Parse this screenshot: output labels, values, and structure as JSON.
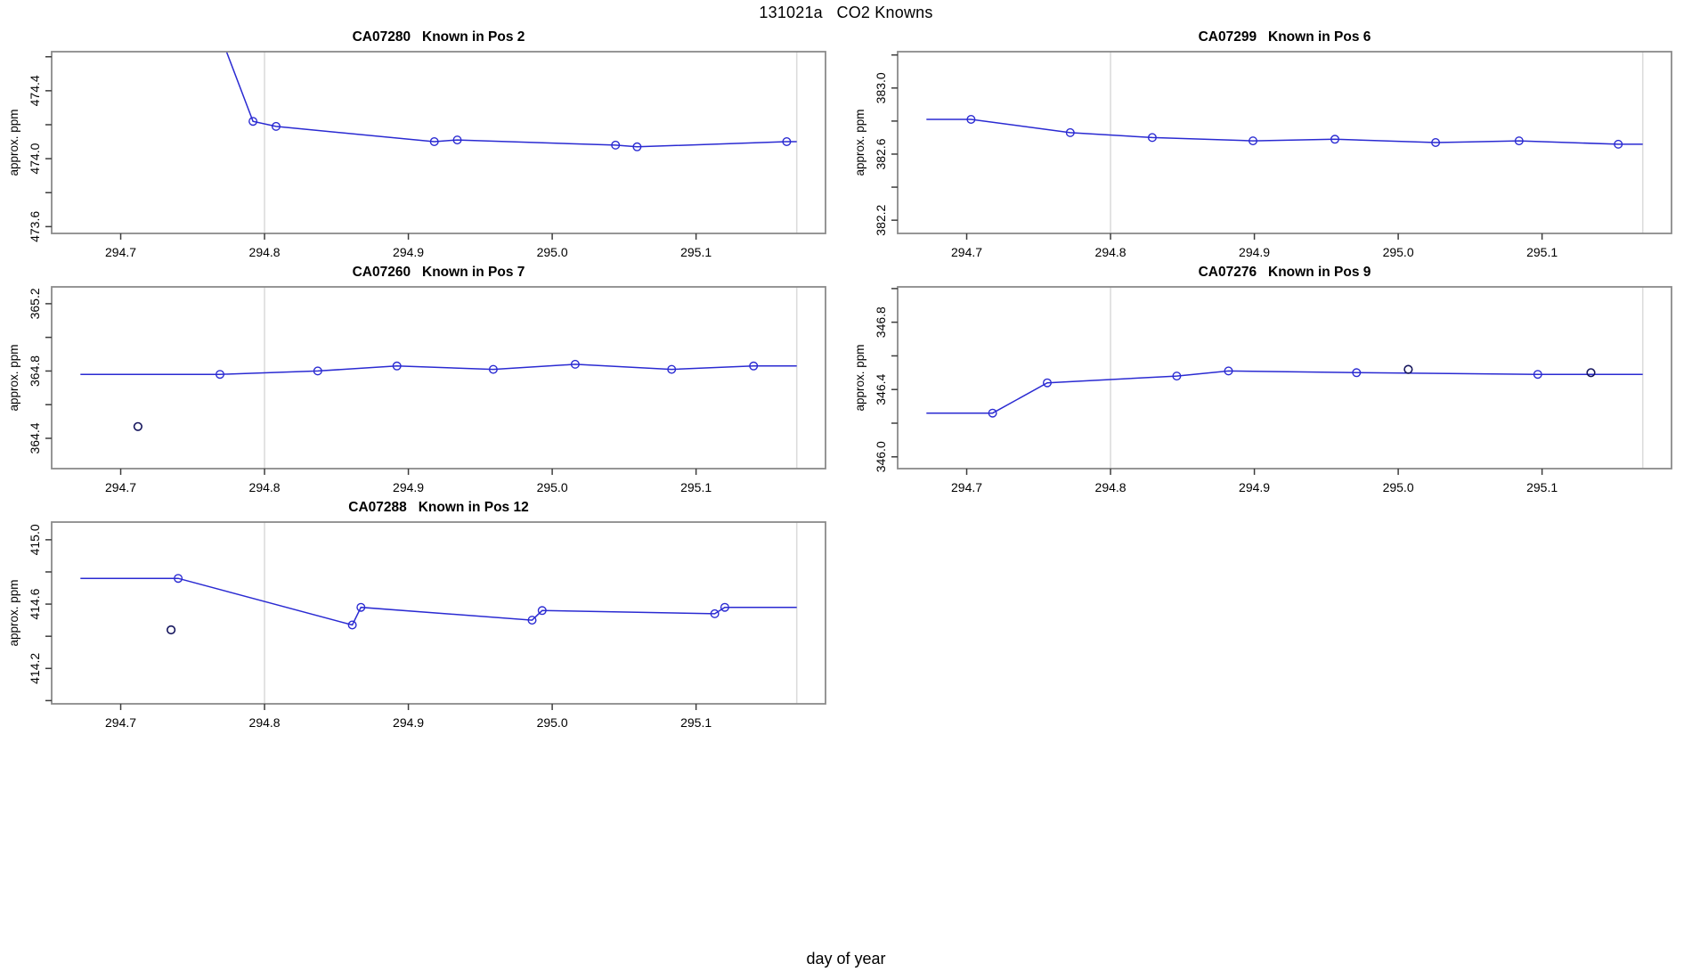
{
  "page": {
    "title": "131021a   CO2 Knowns",
    "xlabel": "day of year"
  },
  "colors": {
    "series_blue": "#2a2ad2",
    "dark_point": "#14145c",
    "vline_gray": "#dcdcdc",
    "box_gray": "#8a8a8a",
    "tick_dark": "#3d3d3d",
    "text_black": "#000000"
  },
  "chart_data": [
    {
      "type": "line",
      "title": "CA07280   Known in Pos 2",
      "ylabel": "approx. ppm",
      "xlabel": "day of year",
      "xlim": [
        294.652,
        295.19
      ],
      "ylim": [
        473.56,
        474.63
      ],
      "xticks": {
        "values": [
          294.7,
          294.8,
          294.9,
          295.0,
          295.1
        ],
        "labels": [
          "294.7",
          "294.8",
          "294.9",
          "295.0",
          "295.1"
        ]
      },
      "yticks": {
        "values": [
          473.6,
          473.8,
          474.0,
          474.2,
          474.4,
          474.6
        ],
        "labels": [
          "473.6",
          "",
          "474.0",
          "",
          "474.4",
          ""
        ]
      },
      "vlines": [
        294.8,
        295.17
      ],
      "grid": "off",
      "legend": "none",
      "line": [
        [
          294.73,
          475.6
        ],
        [
          294.792,
          474.22
        ],
        [
          294.808,
          474.19
        ],
        [
          294.918,
          474.1
        ],
        [
          294.934,
          474.11
        ],
        [
          295.044,
          474.08
        ],
        [
          295.059,
          474.07
        ],
        [
          295.163,
          474.1
        ],
        [
          295.17,
          474.1
        ]
      ],
      "points": [
        [
          294.792,
          474.22
        ],
        [
          294.808,
          474.19
        ],
        [
          294.918,
          474.1
        ],
        [
          294.934,
          474.11
        ],
        [
          295.044,
          474.08
        ],
        [
          295.059,
          474.07
        ],
        [
          295.163,
          474.1
        ]
      ],
      "dark_points": []
    },
    {
      "type": "line",
      "title": "CA07299   Known in Pos 6",
      "ylabel": "approx. ppm",
      "xlabel": "day of year",
      "xlim": [
        294.652,
        295.19
      ],
      "ylim": [
        382.12,
        383.22
      ],
      "xticks": {
        "values": [
          294.7,
          294.8,
          294.9,
          295.0,
          295.1
        ],
        "labels": [
          "294.7",
          "294.8",
          "294.9",
          "295.0",
          "295.1"
        ]
      },
      "yticks": {
        "values": [
          382.2,
          382.4,
          382.6,
          382.8,
          383.0,
          383.2
        ],
        "labels": [
          "382.2",
          "",
          "382.6",
          "",
          "383.0",
          ""
        ]
      },
      "vlines": [
        294.8,
        295.17
      ],
      "grid": "off",
      "legend": "none",
      "line": [
        [
          294.672,
          382.81
        ],
        [
          294.703,
          382.81
        ],
        [
          294.772,
          382.73
        ],
        [
          294.829,
          382.7
        ],
        [
          294.899,
          382.68
        ],
        [
          294.956,
          382.69
        ],
        [
          295.026,
          382.67
        ],
        [
          295.084,
          382.68
        ],
        [
          295.153,
          382.66
        ],
        [
          295.17,
          382.66
        ]
      ],
      "points": [
        [
          294.703,
          382.81
        ],
        [
          294.772,
          382.73
        ],
        [
          294.829,
          382.7
        ],
        [
          294.899,
          382.68
        ],
        [
          294.956,
          382.69
        ],
        [
          295.026,
          382.67
        ],
        [
          295.084,
          382.68
        ],
        [
          295.153,
          382.66
        ]
      ],
      "dark_points": []
    },
    {
      "type": "line",
      "title": "CA07260   Known in Pos 7",
      "ylabel": "approx. ppm",
      "xlabel": "day of year",
      "xlim": [
        294.652,
        295.19
      ],
      "ylim": [
        364.22,
        365.3
      ],
      "xticks": {
        "values": [
          294.7,
          294.8,
          294.9,
          295.0,
          295.1
        ],
        "labels": [
          "294.7",
          "294.8",
          "294.9",
          "295.0",
          "295.1"
        ]
      },
      "yticks": {
        "values": [
          364.4,
          364.6,
          364.8,
          365.0,
          365.2
        ],
        "labels": [
          "364.4",
          "",
          "364.8",
          "",
          "365.2"
        ]
      },
      "vlines": [
        294.8,
        295.17
      ],
      "grid": "off",
      "legend": "none",
      "line": [
        [
          294.672,
          364.78
        ],
        [
          294.769,
          364.78
        ],
        [
          294.837,
          364.8
        ],
        [
          294.892,
          364.83
        ],
        [
          294.959,
          364.81
        ],
        [
          295.016,
          364.84
        ],
        [
          295.083,
          364.81
        ],
        [
          295.14,
          364.83
        ],
        [
          295.17,
          364.83
        ]
      ],
      "points": [
        [
          294.769,
          364.78
        ],
        [
          294.837,
          364.8
        ],
        [
          294.892,
          364.83
        ],
        [
          294.959,
          364.81
        ],
        [
          295.016,
          364.84
        ],
        [
          295.083,
          364.81
        ],
        [
          295.14,
          364.83
        ]
      ],
      "dark_points": [
        [
          294.712,
          364.47
        ]
      ]
    },
    {
      "type": "line",
      "title": "CA07276   Known in Pos 9",
      "ylabel": "approx. ppm",
      "xlabel": "day of year",
      "xlim": [
        294.652,
        295.19
      ],
      "ylim": [
        345.93,
        347.01
      ],
      "xticks": {
        "values": [
          294.7,
          294.8,
          294.9,
          295.0,
          295.1
        ],
        "labels": [
          "294.7",
          "294.8",
          "294.9",
          "295.0",
          "295.1"
        ]
      },
      "yticks": {
        "values": [
          346.0,
          346.2,
          346.4,
          346.6,
          346.8,
          347.0
        ],
        "labels": [
          "346.0",
          "",
          "346.4",
          "",
          "346.8",
          ""
        ]
      },
      "vlines": [
        294.8,
        295.17
      ],
      "grid": "off",
      "legend": "none",
      "line": [
        [
          294.672,
          346.26
        ],
        [
          294.718,
          346.26
        ],
        [
          294.756,
          346.44
        ],
        [
          294.846,
          346.48
        ],
        [
          294.882,
          346.51
        ],
        [
          294.971,
          346.5
        ],
        [
          295.097,
          346.49
        ],
        [
          295.17,
          346.49
        ]
      ],
      "points": [
        [
          294.718,
          346.26
        ],
        [
          294.756,
          346.44
        ],
        [
          294.846,
          346.48
        ],
        [
          294.882,
          346.51
        ],
        [
          294.971,
          346.5
        ],
        [
          295.097,
          346.49
        ]
      ],
      "dark_points": [
        [
          295.007,
          346.52
        ],
        [
          295.134,
          346.5
        ]
      ]
    },
    {
      "type": "line",
      "title": "CA07288   Known in Pos 12",
      "ylabel": "approx. ppm",
      "xlabel": "day of year",
      "xlim": [
        294.652,
        295.19
      ],
      "ylim": [
        413.98,
        415.11
      ],
      "xticks": {
        "values": [
          294.7,
          294.8,
          294.9,
          295.0,
          295.1
        ],
        "labels": [
          "294.7",
          "294.8",
          "294.9",
          "295.0",
          "295.1"
        ]
      },
      "yticks": {
        "values": [
          414.0,
          414.2,
          414.4,
          414.6,
          414.8,
          415.0
        ],
        "labels": [
          "",
          "414.2",
          "",
          "414.6",
          "",
          "415.0"
        ]
      },
      "vlines": [
        294.8,
        295.17
      ],
      "grid": "off",
      "legend": "none",
      "line": [
        [
          294.672,
          414.76
        ],
        [
          294.74,
          414.76
        ],
        [
          294.861,
          414.47
        ],
        [
          294.867,
          414.58
        ],
        [
          294.986,
          414.5
        ],
        [
          294.993,
          414.56
        ],
        [
          295.113,
          414.54
        ],
        [
          295.12,
          414.58
        ],
        [
          295.17,
          414.58
        ]
      ],
      "points": [
        [
          294.74,
          414.76
        ],
        [
          294.861,
          414.47
        ],
        [
          294.867,
          414.58
        ],
        [
          294.986,
          414.5
        ],
        [
          294.993,
          414.56
        ],
        [
          295.113,
          414.54
        ],
        [
          295.12,
          414.58
        ]
      ],
      "dark_points": [
        [
          294.735,
          414.44
        ]
      ]
    }
  ]
}
